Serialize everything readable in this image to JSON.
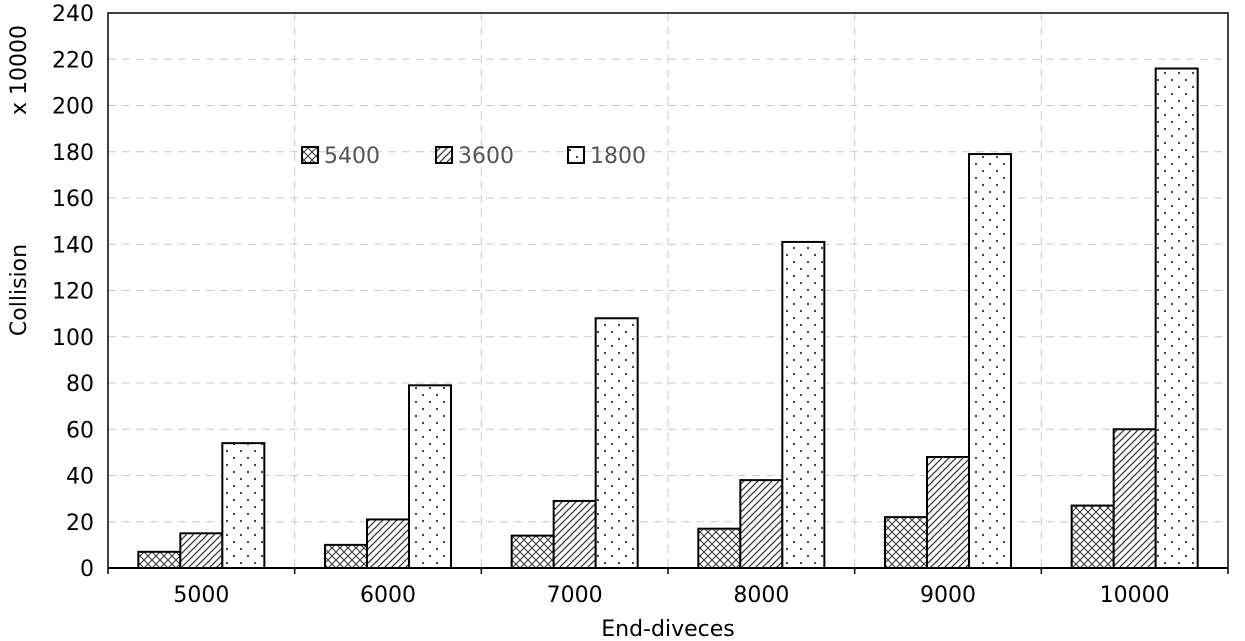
{
  "chart_data": {
    "type": "bar",
    "title": "",
    "xlabel": "End-diveces",
    "ylabel": "Collision",
    "y_multiplier_label": "x 10000",
    "categories": [
      "5000",
      "6000",
      "7000",
      "8000",
      "9000",
      "10000"
    ],
    "series": [
      {
        "name": "5400",
        "pattern": "cross-hatch",
        "values": [
          7,
          10,
          14,
          17,
          22,
          27
        ]
      },
      {
        "name": "3600",
        "pattern": "diagonal-hatch",
        "values": [
          15,
          21,
          29,
          38,
          48,
          60
        ]
      },
      {
        "name": "1800",
        "pattern": "dots",
        "values": [
          54,
          79,
          108,
          141,
          179,
          216
        ]
      }
    ],
    "ylim": [
      0,
      240
    ],
    "yticks": [
      0,
      20,
      40,
      60,
      80,
      100,
      120,
      140,
      160,
      180,
      200,
      220,
      240
    ],
    "grid": true,
    "legend_position": "top-left"
  }
}
